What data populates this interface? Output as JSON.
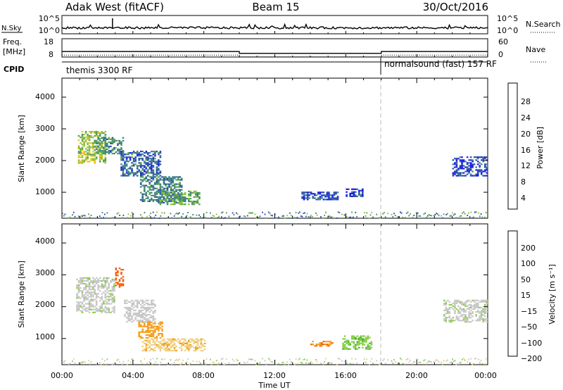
{
  "header": {
    "station": "Adak West (fitACF)",
    "beam": "Beam 15",
    "date": "30/Oct/2016"
  },
  "nsky_panel": {
    "left_label": "N.Sky",
    "left_ticks": [
      "10^5",
      "10^0"
    ],
    "right_label": "N.Search",
    "right_ticks": [
      "10^5",
      "10^0"
    ]
  },
  "freq_panel": {
    "left_label_1": "Freq.",
    "left_label_2": "[MHz]",
    "left_ticks": [
      "18",
      "8"
    ],
    "right_label": "Nave",
    "right_ticks": [
      "60",
      "0"
    ]
  },
  "cpid_panel": {
    "label": "CPID",
    "segments": [
      {
        "text": "themis 3300 RF",
        "start_hour": 0
      },
      {
        "text": "normalsound (fast) 157 RF",
        "start_hour": 18
      }
    ]
  },
  "power_panel": {
    "ylabel": "Slant Range [km]",
    "yticks": [
      "4000",
      "3000",
      "2000",
      "1000"
    ],
    "colorbar_label": "Power [dB]",
    "colorbar_ticks": [
      "28",
      "24",
      "20",
      "16",
      "12",
      "8",
      "4"
    ]
  },
  "velocity_panel": {
    "ylabel": "Slant Range [km]",
    "yticks": [
      "4000",
      "3000",
      "2000",
      "1000"
    ],
    "colorbar_label": "Velocity [m s⁻¹]",
    "colorbar_ticks": [
      "200",
      "100",
      "50",
      "15",
      "−15",
      "−50",
      "−100",
      "−200"
    ]
  },
  "xaxis": {
    "ticks": [
      "00:00",
      "04:00",
      "08:00",
      "12:00",
      "16:00",
      "20:00",
      "00:00"
    ],
    "label": "Time UT"
  },
  "colors": {
    "power_scale": [
      "#1b1bf0",
      "#2a4fa8",
      "#3f7f8f",
      "#54a057",
      "#8fc23a",
      "#e6c21a",
      "#f0801a",
      "#e01818"
    ],
    "velocity_scale": [
      "#e01818",
      "#f06010",
      "#f5a020",
      "#f0d080",
      "#c8c8c8",
      "#c8c8c8",
      "#8ccf4a",
      "#3fb23a",
      "#2a7fa0",
      "#1b2fb8"
    ],
    "dashed_line": "#bbbbbb"
  },
  "chart_data": {
    "type": "heatmap",
    "x_range_hours": [
      0,
      24
    ],
    "y_range_km": [
      180,
      4600
    ],
    "cpid_change_hour": 18,
    "frequency_mhz": [
      {
        "start": 0,
        "end": 10,
        "value": 11
      },
      {
        "start": 10,
        "end": 18,
        "value": 10
      },
      {
        "start": 18,
        "end": 24,
        "value": 11
      }
    ],
    "power_regions_db": [
      {
        "t0": 0.9,
        "t1": 2.5,
        "r0": 1900,
        "r1": 2900,
        "db": 18
      },
      {
        "t0": 1.8,
        "t1": 3.5,
        "r0": 2200,
        "r1": 2700,
        "db": 12
      },
      {
        "t0": 3.3,
        "t1": 5.5,
        "r0": 1500,
        "r1": 2300,
        "db": 8
      },
      {
        "t0": 4.4,
        "t1": 6.7,
        "r0": 650,
        "r1": 1500,
        "db": 10
      },
      {
        "t0": 5.5,
        "t1": 7.7,
        "r0": 600,
        "r1": 1050,
        "db": 14
      },
      {
        "t0": 13.5,
        "t1": 15.5,
        "r0": 750,
        "r1": 1000,
        "db": 6
      },
      {
        "t0": 16.0,
        "t1": 17.0,
        "r0": 850,
        "r1": 1100,
        "db": 6
      },
      {
        "t0": 22.0,
        "t1": 24.0,
        "r0": 1500,
        "r1": 2100,
        "db": 5
      }
    ],
    "velocity_regions_ms": [
      {
        "t0": 0.8,
        "t1": 3.0,
        "r0": 1800,
        "r1": 2900,
        "v": 5
      },
      {
        "t0": 3.0,
        "t1": 3.5,
        "r0": 2600,
        "r1": 3200,
        "v": -180
      },
      {
        "t0": 3.5,
        "t1": 5.2,
        "r0": 1500,
        "r1": 2200,
        "v": 0
      },
      {
        "t0": 4.3,
        "t1": 5.6,
        "r0": 1000,
        "r1": 1500,
        "v": -80
      },
      {
        "t0": 4.5,
        "t1": 8.0,
        "r0": 600,
        "r1": 1000,
        "v": -40
      },
      {
        "t0": 14.0,
        "t1": 15.2,
        "r0": 750,
        "r1": 900,
        "v": -90
      },
      {
        "t0": 15.8,
        "t1": 17.5,
        "r0": 650,
        "r1": 1100,
        "v": 40
      },
      {
        "t0": 21.5,
        "t1": 24.0,
        "r0": 1500,
        "r1": 2200,
        "v": 5
      }
    ]
  }
}
